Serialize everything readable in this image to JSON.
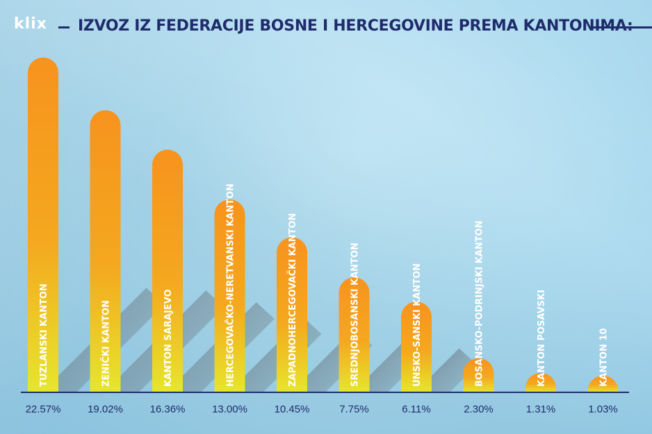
{
  "logo": {
    "text": "klix"
  },
  "colors": {
    "bar_top": "#f7931e",
    "bar_bottom": "#e6e62c",
    "text_dark": "#1f2b6b",
    "bar_text": "#ffffff"
  },
  "chart_data": {
    "type": "bar",
    "title": "IZVOZ IZ FEDERACIJE BOSNE I HERCEGOVINE PREMA KANTONIMA:",
    "categories": [
      "TUZLANSKI KANTON",
      "ZENIČKI KANTON",
      "KANTON SARAJEVO",
      "HERCEGOVAČKO-NERETVANSKI KANTON",
      "ZAPADNOHERCEGOVAČKI KANTON",
      "SREDNJOBOSANSKI KANTON",
      "UNSKO-SANSKI KANTON",
      "BOSANSKO-PODRINJSKI KANTON",
      "KANTON POSAVSKI",
      "KANTON 10"
    ],
    "values": [
      22.57,
      19.02,
      16.36,
      13.0,
      10.45,
      7.75,
      6.11,
      2.3,
      1.31,
      1.03
    ],
    "value_labels": [
      "22.57%",
      "19.02%",
      "16.36%",
      "13.00%",
      "10.45%",
      "7.75%",
      "6.11%",
      "2.30%",
      "1.31%",
      "1.03%"
    ],
    "ylim": [
      0,
      23.5
    ],
    "grid": false,
    "legend": "none"
  }
}
